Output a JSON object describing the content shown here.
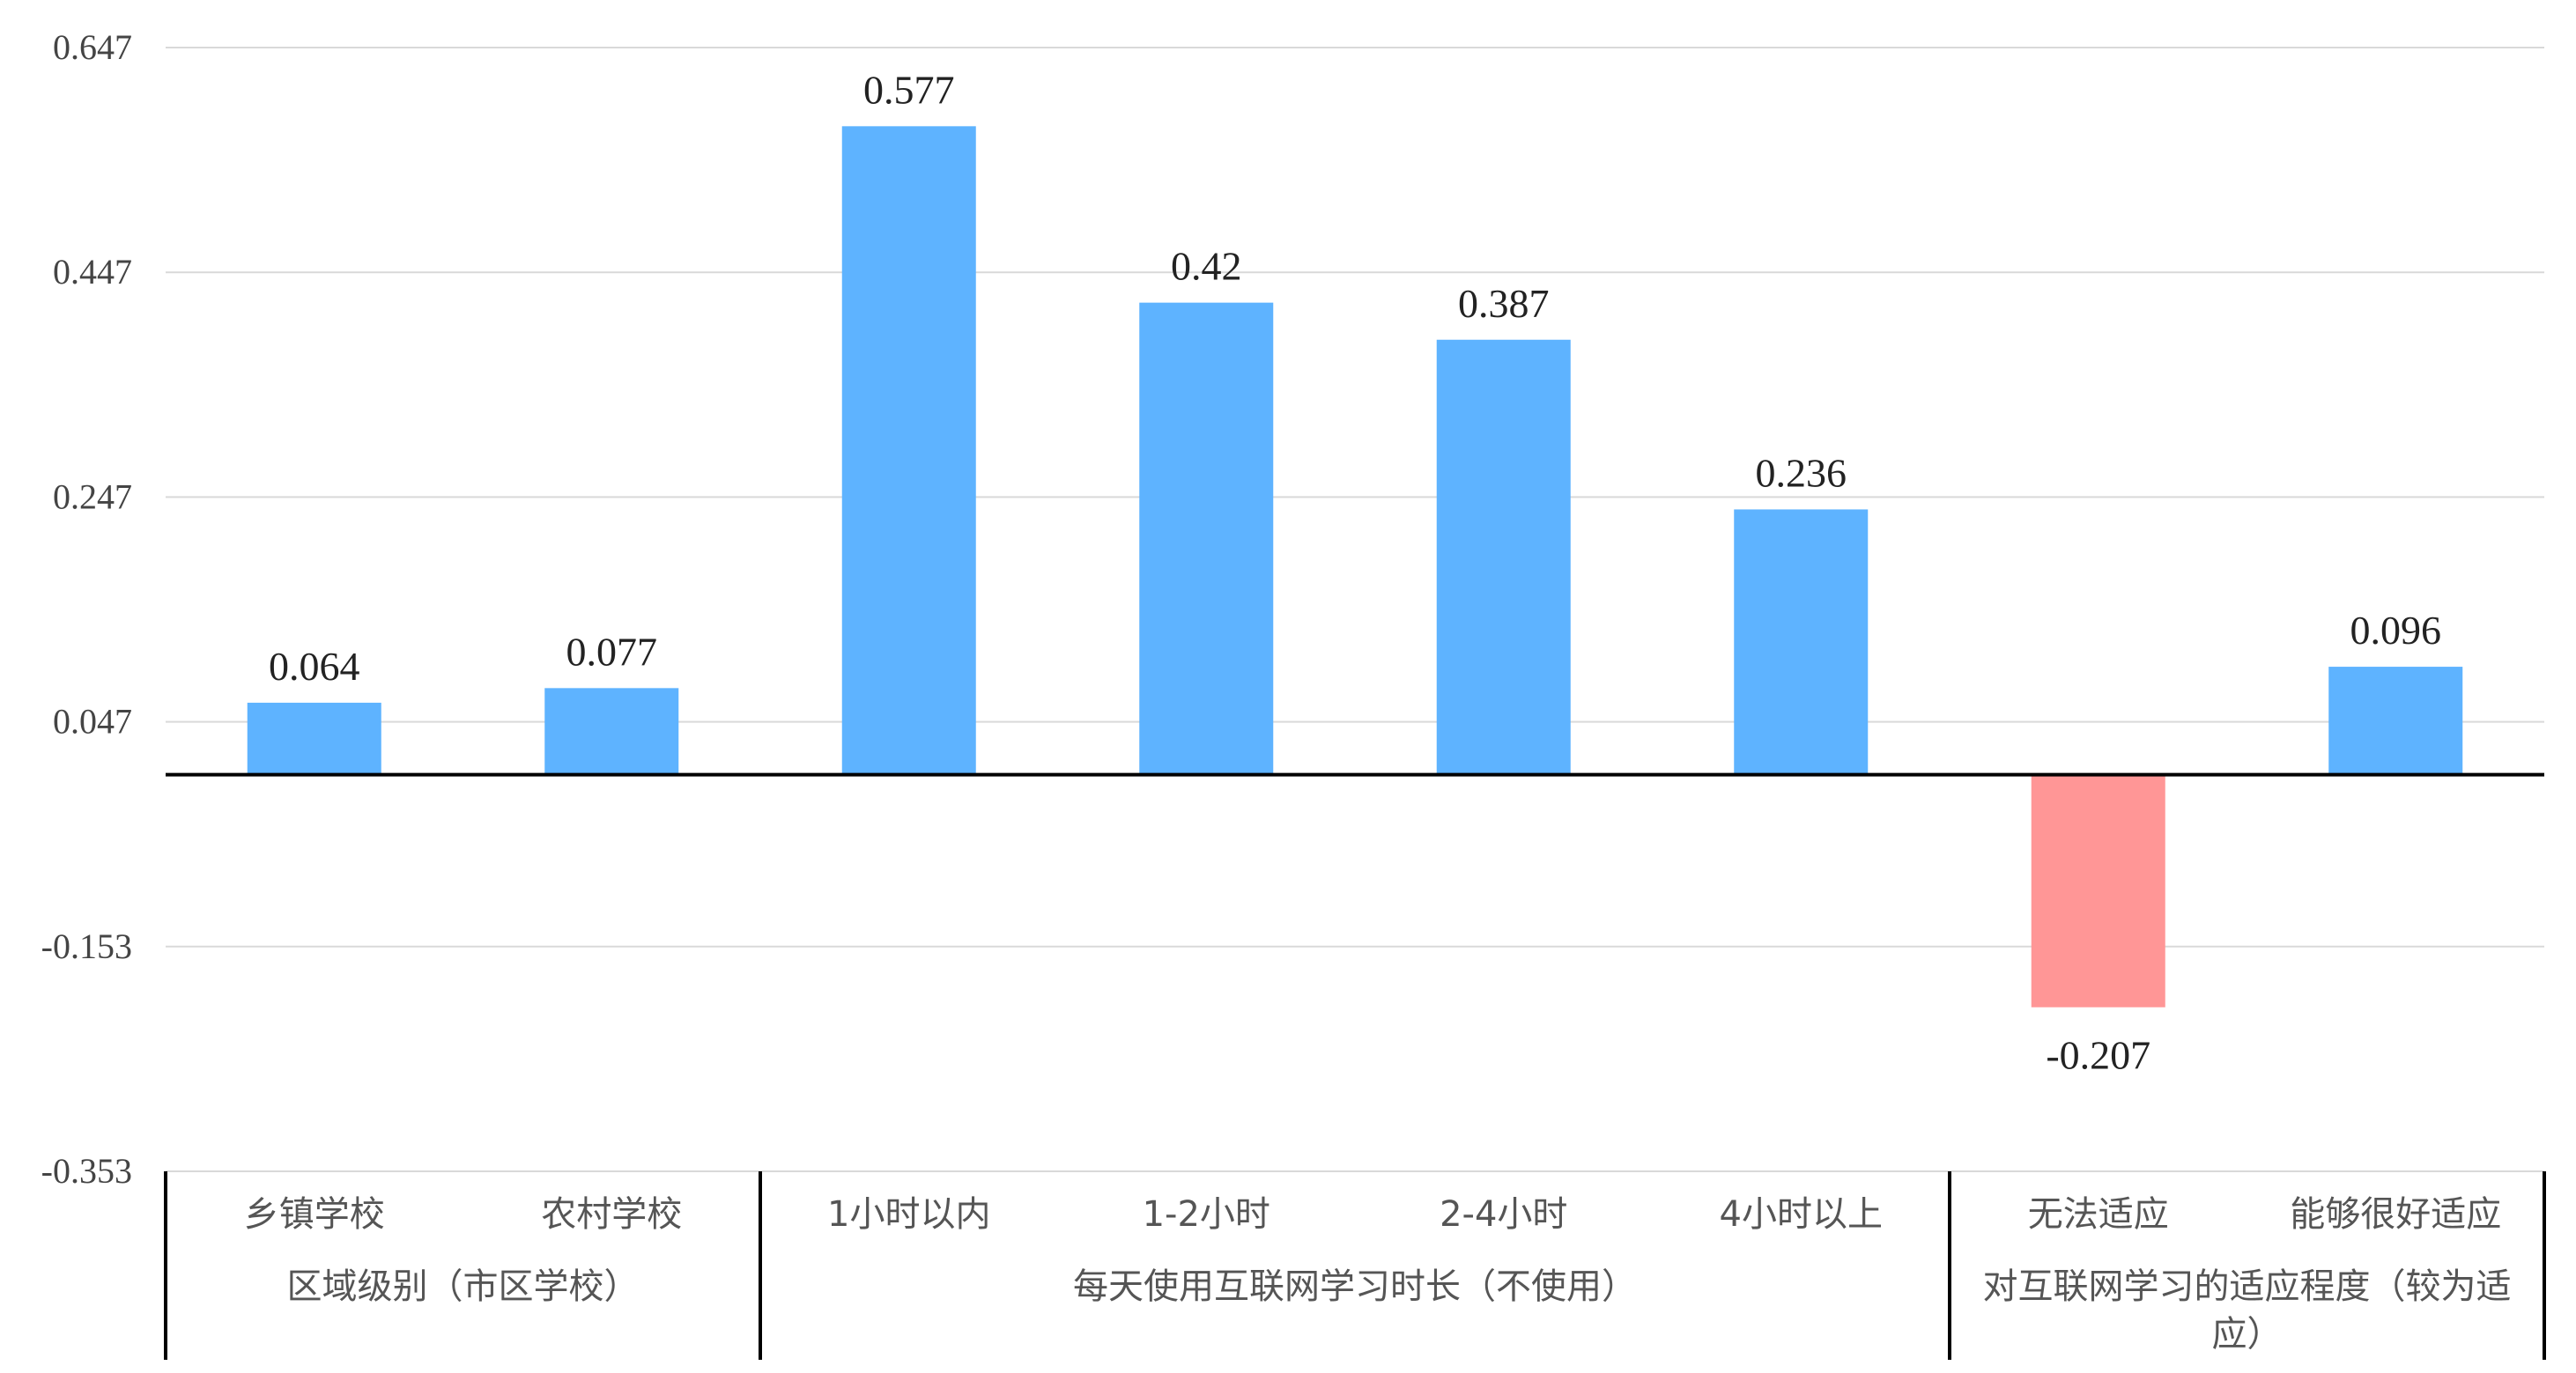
{
  "chart_data": {
    "type": "bar",
    "ylim": [
      -0.353,
      0.647
    ],
    "y_ticks": [
      "0.647",
      "0.447",
      "0.247",
      "0.047",
      "-0.153",
      "-0.353"
    ],
    "grid": true,
    "legend": "none",
    "colors": {
      "positive": "#5eb3ff",
      "negative": "#ff9696"
    },
    "categories": [
      "乡镇学校",
      "农村学校",
      "1小时以内",
      "1-2小时",
      "2-4小时",
      "4小时以上",
      "无法适应",
      "能够很好适应"
    ],
    "values": [
      0.064,
      0.077,
      0.577,
      0.42,
      0.387,
      0.236,
      -0.207,
      0.096
    ],
    "data_labels": [
      "0.064",
      "0.077",
      "0.577",
      "0.42",
      "0.387",
      "0.236",
      "-0.207",
      "0.096"
    ],
    "groups": [
      {
        "label_lines": [
          "区域级别（市区学校）"
        ],
        "span": [
          0,
          1
        ]
      },
      {
        "label_lines": [
          "每天使用互联网学习时长（不使用）"
        ],
        "span": [
          2,
          5
        ]
      },
      {
        "label_lines": [
          "对互联网学习的适应程度（较为适",
          "应）"
        ],
        "span": [
          6,
          7
        ]
      }
    ]
  }
}
